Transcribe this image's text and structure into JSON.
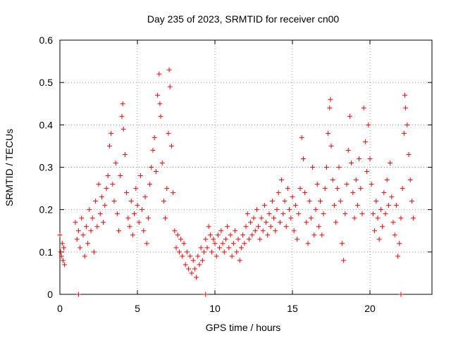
{
  "chart_data": {
    "type": "scatter",
    "title": "Day 235 of 2023, SRMTID for receiver cn00",
    "xlabel": "GPS time / hours",
    "ylabel": "SRMTID / TECUs",
    "xlim": [
      0,
      24
    ],
    "ylim": [
      0,
      0.6
    ],
    "x_ticks": [
      0,
      5,
      10,
      15,
      20
    ],
    "y_ticks": [
      0,
      0.1,
      0.2,
      0.3,
      0.4,
      0.5,
      0.6
    ],
    "x_tick_labels": [
      "0",
      "5",
      "10",
      "15",
      "20"
    ],
    "y_tick_labels": [
      "0",
      "0.1",
      "0.2",
      "0.3",
      "0.4",
      "0.5",
      "0.6"
    ],
    "grid": true,
    "marker": "+",
    "series_color": "#ff0000",
    "series": [
      {
        "name": "cn00",
        "points": [
          [
            0.0,
            0.14
          ],
          [
            0.05,
            0.1
          ],
          [
            0.1,
            0.09
          ],
          [
            0.15,
            0.12
          ],
          [
            0.2,
            0.08
          ],
          [
            0.25,
            0.11
          ],
          [
            0.3,
            0.07
          ],
          [
            1.2,
            0.0
          ],
          [
            9.4,
            0.0
          ],
          [
            22.0,
            0.0
          ],
          [
            1.0,
            0.17
          ],
          [
            1.1,
            0.13
          ],
          [
            1.2,
            0.15
          ],
          [
            1.3,
            0.11
          ],
          [
            1.4,
            0.18
          ],
          [
            1.5,
            0.14
          ],
          [
            1.6,
            0.09
          ],
          [
            1.7,
            0.16
          ],
          [
            1.8,
            0.12
          ],
          [
            1.9,
            0.2
          ],
          [
            2.0,
            0.15
          ],
          [
            2.1,
            0.18
          ],
          [
            2.2,
            0.1
          ],
          [
            2.3,
            0.22
          ],
          [
            2.4,
            0.16
          ],
          [
            2.5,
            0.26
          ],
          [
            2.6,
            0.19
          ],
          [
            2.7,
            0.23
          ],
          [
            2.8,
            0.17
          ],
          [
            2.9,
            0.21
          ],
          [
            3.0,
            0.25
          ],
          [
            3.1,
            0.28
          ],
          [
            3.2,
            0.35
          ],
          [
            3.3,
            0.38
          ],
          [
            3.4,
            0.26
          ],
          [
            3.5,
            0.22
          ],
          [
            3.6,
            0.31
          ],
          [
            3.7,
            0.19
          ],
          [
            3.8,
            0.15
          ],
          [
            3.9,
            0.28
          ],
          [
            4.0,
            0.42
          ],
          [
            4.05,
            0.45
          ],
          [
            4.1,
            0.39
          ],
          [
            4.2,
            0.33
          ],
          [
            4.3,
            0.24
          ],
          [
            4.4,
            0.18
          ],
          [
            4.5,
            0.16
          ],
          [
            4.6,
            0.22
          ],
          [
            4.7,
            0.14
          ],
          [
            4.8,
            0.19
          ],
          [
            4.9,
            0.25
          ],
          [
            5.0,
            0.21
          ],
          [
            5.1,
            0.17
          ],
          [
            5.2,
            0.28
          ],
          [
            5.3,
            0.2
          ],
          [
            5.4,
            0.15
          ],
          [
            5.5,
            0.23
          ],
          [
            5.6,
            0.12
          ],
          [
            5.7,
            0.18
          ],
          [
            5.8,
            0.26
          ],
          [
            5.9,
            0.3
          ],
          [
            6.0,
            0.34
          ],
          [
            6.1,
            0.37
          ],
          [
            6.2,
            0.29
          ],
          [
            6.3,
            0.47
          ],
          [
            6.4,
            0.52
          ],
          [
            6.45,
            0.45
          ],
          [
            6.5,
            0.42
          ],
          [
            6.6,
            0.31
          ],
          [
            6.7,
            0.22
          ],
          [
            6.8,
            0.18
          ],
          [
            6.9,
            0.25
          ],
          [
            7.0,
            0.38
          ],
          [
            7.05,
            0.53
          ],
          [
            7.1,
            0.49
          ],
          [
            7.2,
            0.35
          ],
          [
            7.3,
            0.24
          ],
          [
            7.4,
            0.15
          ],
          [
            7.5,
            0.11
          ],
          [
            7.6,
            0.14
          ],
          [
            7.7,
            0.1
          ],
          [
            7.8,
            0.13
          ],
          [
            7.9,
            0.09
          ],
          [
            8.0,
            0.12
          ],
          [
            8.1,
            0.07
          ],
          [
            8.2,
            0.1
          ],
          [
            8.3,
            0.06
          ],
          [
            8.4,
            0.09
          ],
          [
            8.5,
            0.05
          ],
          [
            8.6,
            0.08
          ],
          [
            8.7,
            0.06
          ],
          [
            8.8,
            0.04
          ],
          [
            8.9,
            0.09
          ],
          [
            9.0,
            0.07
          ],
          [
            9.1,
            0.11
          ],
          [
            9.2,
            0.08
          ],
          [
            9.3,
            0.1
          ],
          [
            9.4,
            0.13
          ],
          [
            9.5,
            0.11
          ],
          [
            9.6,
            0.16
          ],
          [
            9.7,
            0.14
          ],
          [
            9.8,
            0.1
          ],
          [
            9.9,
            0.13
          ],
          [
            10.0,
            0.12
          ],
          [
            10.1,
            0.09
          ],
          [
            10.2,
            0.14
          ],
          [
            10.3,
            0.11
          ],
          [
            10.4,
            0.15
          ],
          [
            10.5,
            0.12
          ],
          [
            10.6,
            0.1
          ],
          [
            10.7,
            0.13
          ],
          [
            10.8,
            0.16
          ],
          [
            10.9,
            0.11
          ],
          [
            11.0,
            0.14
          ],
          [
            11.1,
            0.09
          ],
          [
            11.2,
            0.12
          ],
          [
            11.3,
            0.15
          ],
          [
            11.4,
            0.1
          ],
          [
            11.5,
            0.13
          ],
          [
            11.6,
            0.08
          ],
          [
            11.7,
            0.11
          ],
          [
            11.8,
            0.14
          ],
          [
            11.9,
            0.12
          ],
          [
            12.0,
            0.16
          ],
          [
            12.1,
            0.19
          ],
          [
            12.2,
            0.13
          ],
          [
            12.3,
            0.17
          ],
          [
            12.4,
            0.14
          ],
          [
            12.5,
            0.18
          ],
          [
            12.6,
            0.15
          ],
          [
            12.7,
            0.2
          ],
          [
            12.8,
            0.16
          ],
          [
            12.9,
            0.13
          ],
          [
            13.0,
            0.18
          ],
          [
            13.1,
            0.15
          ],
          [
            13.2,
            0.21
          ],
          [
            13.3,
            0.17
          ],
          [
            13.4,
            0.14
          ],
          [
            13.5,
            0.19
          ],
          [
            13.6,
            0.16
          ],
          [
            13.7,
            0.22
          ],
          [
            13.8,
            0.18
          ],
          [
            13.9,
            0.15
          ],
          [
            14.0,
            0.2
          ],
          [
            14.1,
            0.24
          ],
          [
            14.2,
            0.17
          ],
          [
            14.3,
            0.27
          ],
          [
            14.4,
            0.19
          ],
          [
            14.5,
            0.22
          ],
          [
            14.6,
            0.16
          ],
          [
            14.7,
            0.25
          ],
          [
            14.8,
            0.2
          ],
          [
            14.9,
            0.18
          ],
          [
            15.0,
            0.23
          ],
          [
            15.1,
            0.15
          ],
          [
            15.2,
            0.21
          ],
          [
            15.3,
            0.13
          ],
          [
            15.4,
            0.19
          ],
          [
            15.5,
            0.25
          ],
          [
            15.6,
            0.37
          ],
          [
            15.7,
            0.32
          ],
          [
            15.8,
            0.24
          ],
          [
            15.9,
            0.17
          ],
          [
            16.0,
            0.12
          ],
          [
            16.1,
            0.22
          ],
          [
            16.2,
            0.18
          ],
          [
            16.3,
            0.3
          ],
          [
            16.4,
            0.14
          ],
          [
            16.5,
            0.2
          ],
          [
            16.6,
            0.26
          ],
          [
            16.7,
            0.16
          ],
          [
            16.8,
            0.22
          ],
          [
            16.9,
            0.14
          ],
          [
            17.0,
            0.19
          ],
          [
            17.1,
            0.25
          ],
          [
            17.2,
            0.3
          ],
          [
            17.3,
            0.38
          ],
          [
            17.4,
            0.44
          ],
          [
            17.45,
            0.46
          ],
          [
            17.5,
            0.35
          ],
          [
            17.6,
            0.27
          ],
          [
            17.7,
            0.21
          ],
          [
            17.8,
            0.17
          ],
          [
            17.9,
            0.25
          ],
          [
            18.0,
            0.3
          ],
          [
            18.1,
            0.22
          ],
          [
            18.2,
            0.12
          ],
          [
            18.3,
            0.08
          ],
          [
            18.4,
            0.19
          ],
          [
            18.5,
            0.26
          ],
          [
            18.6,
            0.34
          ],
          [
            18.7,
            0.42
          ],
          [
            18.8,
            0.31
          ],
          [
            18.9,
            0.24
          ],
          [
            19.0,
            0.18
          ],
          [
            19.1,
            0.27
          ],
          [
            19.2,
            0.21
          ],
          [
            19.3,
            0.32
          ],
          [
            19.4,
            0.25
          ],
          [
            19.5,
            0.19
          ],
          [
            19.6,
            0.44
          ],
          [
            19.7,
            0.36
          ],
          [
            19.8,
            0.29
          ],
          [
            19.9,
            0.4
          ],
          [
            20.0,
            0.32
          ],
          [
            20.1,
            0.26
          ],
          [
            20.2,
            0.19
          ],
          [
            20.3,
            0.15
          ],
          [
            20.4,
            0.22
          ],
          [
            20.5,
            0.18
          ],
          [
            20.6,
            0.13
          ],
          [
            20.7,
            0.2
          ],
          [
            20.8,
            0.16
          ],
          [
            20.9,
            0.24
          ],
          [
            21.0,
            0.19
          ],
          [
            21.1,
            0.27
          ],
          [
            21.2,
            0.21
          ],
          [
            21.3,
            0.31
          ],
          [
            21.4,
            0.23
          ],
          [
            21.5,
            0.17
          ],
          [
            21.6,
            0.14
          ],
          [
            21.7,
            0.21
          ],
          [
            21.8,
            0.09
          ],
          [
            21.9,
            0.12
          ],
          [
            22.0,
            0.18
          ],
          [
            22.1,
            0.25
          ],
          [
            22.2,
            0.38
          ],
          [
            22.25,
            0.47
          ],
          [
            22.3,
            0.44
          ],
          [
            22.4,
            0.4
          ],
          [
            22.5,
            0.33
          ],
          [
            22.6,
            0.27
          ],
          [
            22.7,
            0.22
          ],
          [
            22.8,
            0.18
          ]
        ]
      }
    ]
  }
}
